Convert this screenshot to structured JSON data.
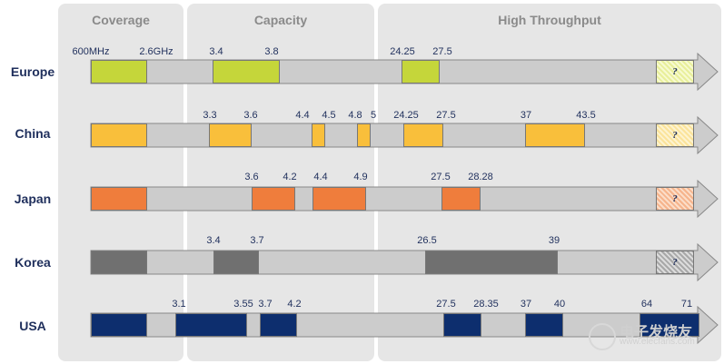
{
  "panels": [
    {
      "title": "Coverage"
    },
    {
      "title": "Capacity"
    },
    {
      "title": "High Throughput"
    }
  ],
  "colors": {
    "band": "#cccccc",
    "europe": "#c5d63a",
    "china": "#f9bf3b",
    "japan": "#ef7d3c",
    "korea": "#707070",
    "usa": "#0d2e6e"
  },
  "regions": [
    {
      "name": "Europe",
      "color_key": "europe",
      "labels": [
        "600MHz",
        "2.6GHz",
        "3.4",
        "3.8",
        "24.25",
        "27.5"
      ],
      "question": "?"
    },
    {
      "name": "China",
      "color_key": "china",
      "labels": [
        "3.3",
        "3.6",
        "4.4",
        "4.5",
        "4.8",
        "5",
        "24.25",
        "27.5",
        "37",
        "43.5"
      ],
      "question": "?"
    },
    {
      "name": "Japan",
      "color_key": "japan",
      "labels": [
        "3.6",
        "4.2",
        "4.4",
        "4.9",
        "27.5",
        "28.28"
      ],
      "question": "?"
    },
    {
      "name": "Korea",
      "color_key": "korea",
      "labels": [
        "3.4",
        "3.7",
        "26.5",
        "39"
      ],
      "question": "?"
    },
    {
      "name": "USA",
      "color_key": "usa",
      "labels": [
        "3.1",
        "3.55",
        "3.7",
        "4.2",
        "27.5",
        "28.35",
        "37",
        "40",
        "64",
        "71"
      ],
      "question": ""
    }
  ],
  "watermark": {
    "text": "电子发烧友",
    "url": "www.elecfans.com"
  }
}
